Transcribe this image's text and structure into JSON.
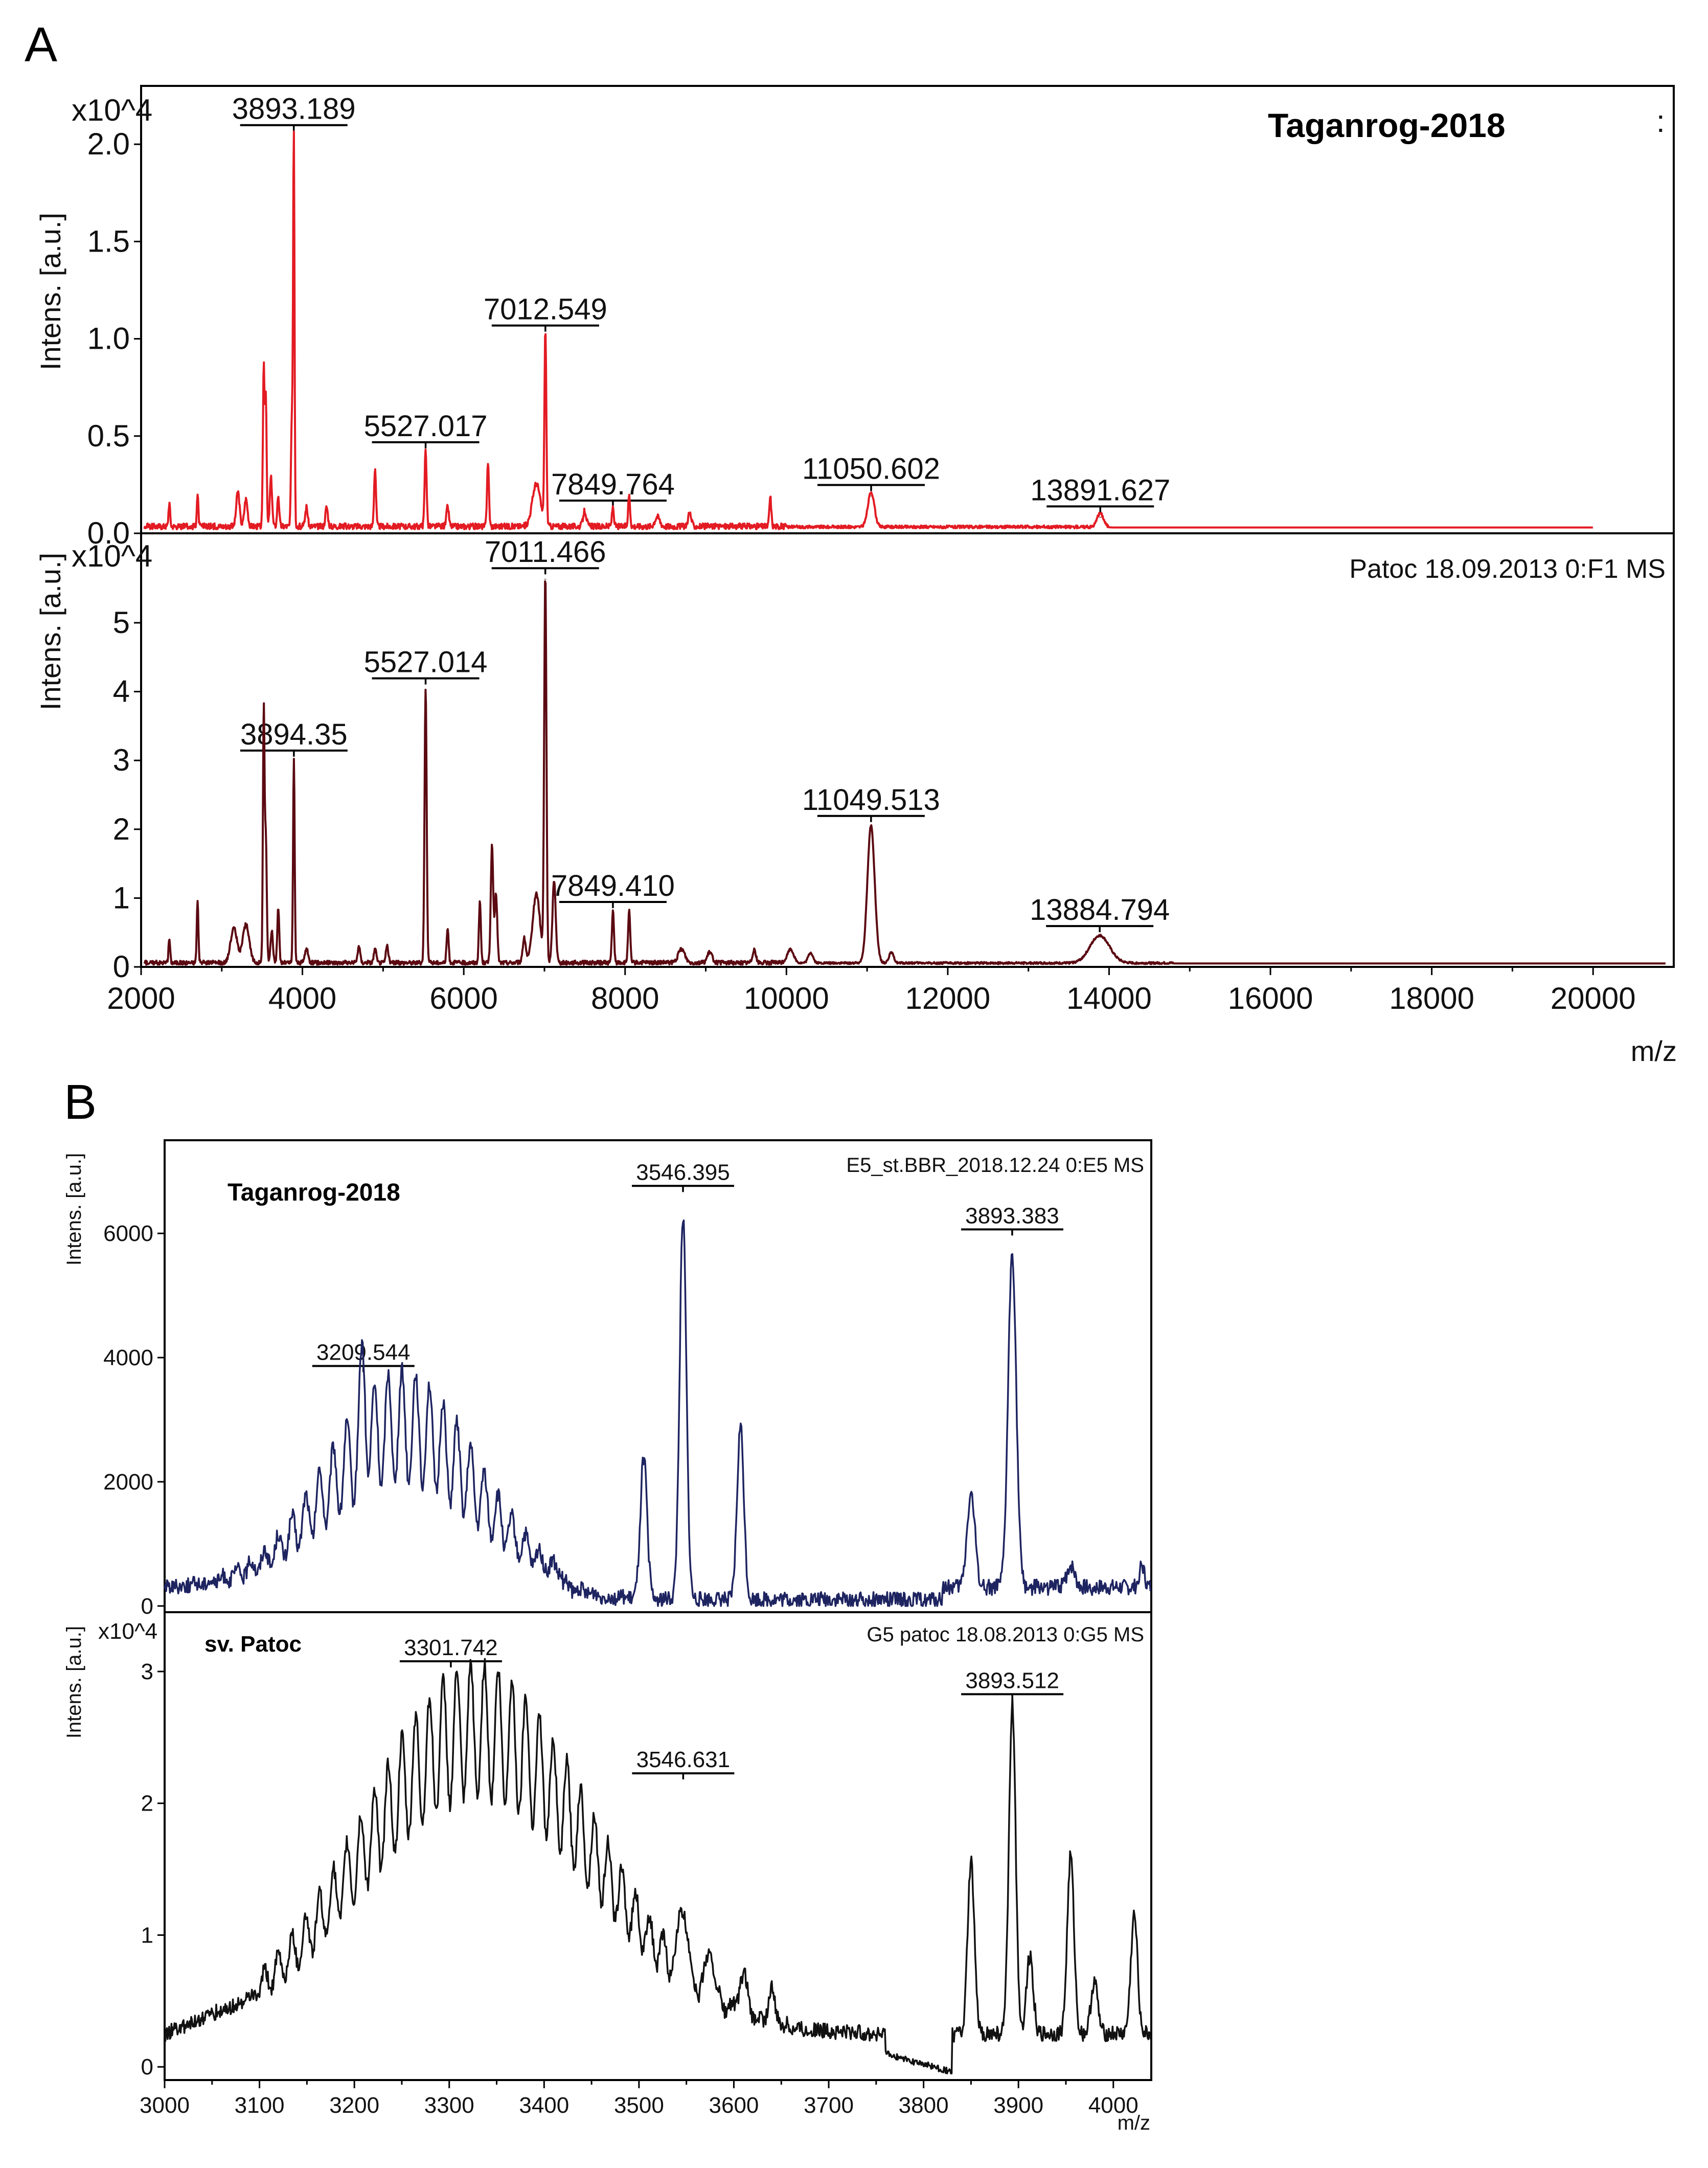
{
  "colors": {
    "red": "#e31b23",
    "darkred": "#5b0a12",
    "navy": "#1e2460",
    "black": "#111111"
  },
  "panel_a": {
    "letter": "A"
  },
  "panel_b": {
    "letter": "B"
  },
  "chart_data": [
    {
      "type": "line",
      "id": "A-top",
      "title": "Taganrog-2018",
      "ylabel": "Intens. [a.u.]",
      "yscale": "x10^4",
      "xlabel": "m/z",
      "xlim": [
        2000,
        21000
      ],
      "ylim": [
        0,
        2.3
      ],
      "yticks": [
        "0.0",
        "0.5",
        "1.0",
        "1.5",
        "2.0"
      ],
      "xticks": [
        "2000",
        "4000",
        "6000",
        "8000",
        "10000",
        "12000",
        "14000",
        "16000",
        "18000",
        "20000"
      ],
      "baseline": 0.03,
      "trace_end": 20000,
      "annotations": [
        {
          "label": "3893.189",
          "x": 3893,
          "y": 2.03
        },
        {
          "label": "5527.017",
          "x": 5527,
          "y": 0.4
        },
        {
          "label": "7012.549",
          "x": 7012,
          "y": 1.0
        },
        {
          "label": "7849.764",
          "x": 7849,
          "y": 0.1
        },
        {
          "label": "11050.602",
          "x": 11050,
          "y": 0.18
        },
        {
          "label": "13891.627",
          "x": 13891,
          "y": 0.07
        }
      ],
      "peaks": [
        [
          2350,
          0.12,
          10
        ],
        [
          2700,
          0.16,
          10
        ],
        [
          3200,
          0.18,
          20
        ],
        [
          3300,
          0.14,
          20
        ],
        [
          3520,
          0.82,
          10
        ],
        [
          3546,
          0.68,
          10
        ],
        [
          3610,
          0.25,
          14
        ],
        [
          3700,
          0.16,
          12
        ],
        [
          3868,
          0.55,
          10
        ],
        [
          3893,
          2.03,
          9
        ],
        [
          4050,
          0.1,
          15
        ],
        [
          4300,
          0.1,
          15
        ],
        [
          4900,
          0.3,
          12
        ],
        [
          5527,
          0.4,
          12
        ],
        [
          5800,
          0.1,
          15
        ],
        [
          6300,
          0.33,
          12
        ],
        [
          6900,
          0.22,
          50
        ],
        [
          7012,
          1.0,
          12
        ],
        [
          7500,
          0.08,
          20
        ],
        [
          7849,
          0.1,
          12
        ],
        [
          8050,
          0.16,
          12
        ],
        [
          8400,
          0.05,
          30
        ],
        [
          8800,
          0.07,
          20
        ],
        [
          9800,
          0.15,
          12
        ],
        [
          11050,
          0.18,
          40
        ],
        [
          13891,
          0.07,
          40
        ]
      ],
      "noise": 0.015,
      "noise_end": 14000
    },
    {
      "type": "line",
      "id": "A-bottom",
      "title": "Patoc 18.09.2013 0:F1 MS",
      "ylabel": "Intens. [a.u.]",
      "yscale": "x10^4",
      "xlabel": "m/z",
      "xlim": [
        2000,
        21000
      ],
      "ylim": [
        0,
        6.3
      ],
      "yticks": [
        "0",
        "1",
        "2",
        "3",
        "4",
        "5"
      ],
      "xticks": [
        "2000",
        "4000",
        "6000",
        "8000",
        "10000",
        "12000",
        "14000",
        "16000",
        "18000",
        "20000"
      ],
      "baseline": 0.05,
      "trace_end": 20900,
      "annotations": [
        {
          "label": "3894.35",
          "x": 3894,
          "y": 2.95
        },
        {
          "label": "5527.014",
          "x": 5527,
          "y": 4.0
        },
        {
          "label": "7011.466",
          "x": 7011,
          "y": 5.6
        },
        {
          "label": "7849.410",
          "x": 7849,
          "y": 0.75
        },
        {
          "label": "11049.513",
          "x": 11049,
          "y": 2.0
        },
        {
          "label": "13884.794",
          "x": 13884,
          "y": 0.4
        }
      ],
      "peaks": [
        [
          2350,
          0.35,
          10
        ],
        [
          2700,
          0.9,
          10
        ],
        [
          3150,
          0.5,
          40
        ],
        [
          3300,
          0.55,
          40
        ],
        [
          3520,
          3.6,
          10
        ],
        [
          3546,
          1.8,
          12
        ],
        [
          3620,
          0.45,
          15
        ],
        [
          3700,
          0.8,
          12
        ],
        [
          3894,
          2.95,
          10
        ],
        [
          4050,
          0.2,
          20
        ],
        [
          4700,
          0.25,
          15
        ],
        [
          4900,
          0.2,
          15
        ],
        [
          5050,
          0.25,
          15
        ],
        [
          5527,
          4.0,
          13
        ],
        [
          5800,
          0.5,
          12
        ],
        [
          6200,
          0.9,
          12
        ],
        [
          6350,
          1.7,
          15
        ],
        [
          6400,
          1.0,
          15
        ],
        [
          6750,
          0.35,
          20
        ],
        [
          6900,
          1.0,
          45
        ],
        [
          7011,
          5.6,
          14
        ],
        [
          7120,
          1.2,
          20
        ],
        [
          7849,
          0.75,
          13
        ],
        [
          8050,
          0.75,
          13
        ],
        [
          8700,
          0.2,
          40
        ],
        [
          9050,
          0.15,
          30
        ],
        [
          9600,
          0.2,
          20
        ],
        [
          10050,
          0.2,
          40
        ],
        [
          10300,
          0.15,
          30
        ],
        [
          11049,
          2.0,
          45
        ],
        [
          11300,
          0.15,
          30
        ],
        [
          13884,
          0.4,
          120
        ]
      ],
      "noise": 0.03,
      "noise_end": 14800
    },
    {
      "type": "line",
      "id": "B-top",
      "title": "Taganrog-2018",
      "subtitle": "E5_st.BBR_2018.12.24 0:E5 MS",
      "ylabel": "Intens. [a.u.]",
      "xlabel": "m/z",
      "xlim": [
        3000,
        4040
      ],
      "ylim": [
        -100,
        7500
      ],
      "yticks": [
        "0",
        "2000",
        "4000",
        "6000"
      ],
      "xticks": [
        "3000",
        "3100",
        "3200",
        "3300",
        "3400",
        "3500",
        "3600",
        "3700",
        "3800",
        "3900",
        "4000"
      ],
      "annotations": [
        {
          "label": "3209.544",
          "x": 3209.5,
          "y": 3700
        },
        {
          "label": "3546.395",
          "x": 3546.4,
          "y": 6600
        },
        {
          "label": "3893.383",
          "x": 3893.4,
          "y": 5900
        }
      ]
    },
    {
      "type": "line",
      "id": "B-bottom",
      "title": "sv. Patoc",
      "subtitle": "G5 patoc 18.08.2013 0:G5 MS",
      "ylabel": "Intens. [a.u.]",
      "yscale": "x10^4",
      "xlabel": "m/z",
      "xlim": [
        3000,
        4040
      ],
      "ylim": [
        -0.1,
        3.45
      ],
      "yticks": [
        "0",
        "1",
        "2",
        "3"
      ],
      "xticks": [
        "3000",
        "3100",
        "3200",
        "3300",
        "3400",
        "3500",
        "3600",
        "3700",
        "3800",
        "3900",
        "4000"
      ],
      "annotations": [
        {
          "label": "3301.742",
          "x": 3301.7,
          "y": 3.0
        },
        {
          "label": "3546.631",
          "x": 3546.6,
          "y": 2.15
        },
        {
          "label": "3893.512",
          "x": 3893.5,
          "y": 2.75
        }
      ]
    }
  ]
}
